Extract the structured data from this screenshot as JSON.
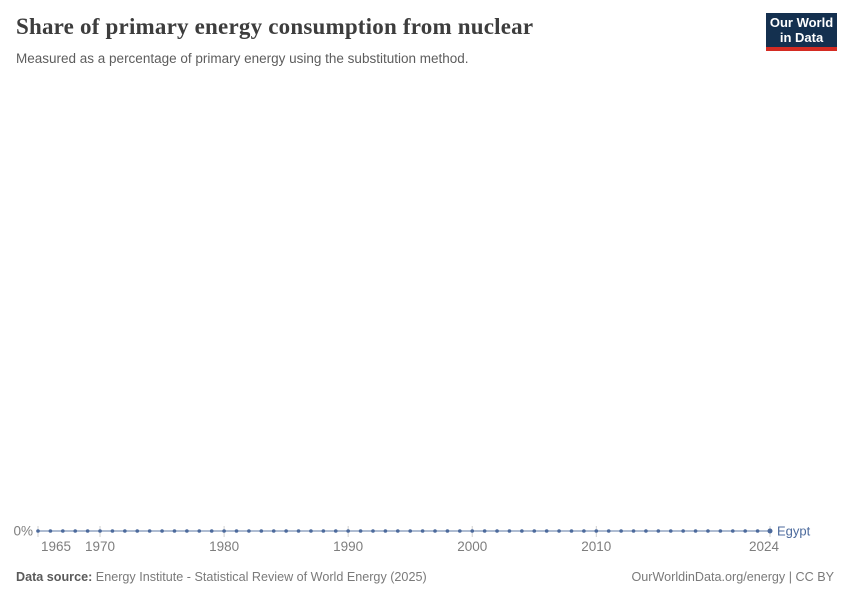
{
  "header": {
    "title": "Share of primary energy consumption from nuclear",
    "subtitle": "Measured as a percentage of primary energy using the substitution method.",
    "logo": {
      "line1": "Our World",
      "line2": "in Data",
      "bg_color": "#14304f",
      "accent_color": "#d42b22"
    }
  },
  "chart_data": {
    "type": "line",
    "title": "Share of primary energy consumption from nuclear",
    "subtitle": "Measured as a percentage of primary energy using the substitution method.",
    "xlabel": "",
    "ylabel": "",
    "grid": false,
    "legend_position": "end-of-line-label",
    "x": [
      1965,
      1966,
      1967,
      1968,
      1969,
      1970,
      1971,
      1972,
      1973,
      1974,
      1975,
      1976,
      1977,
      1978,
      1979,
      1980,
      1981,
      1982,
      1983,
      1984,
      1985,
      1986,
      1987,
      1988,
      1989,
      1990,
      1991,
      1992,
      1993,
      1994,
      1995,
      1996,
      1997,
      1998,
      1999,
      2000,
      2001,
      2002,
      2003,
      2004,
      2005,
      2006,
      2007,
      2008,
      2009,
      2010,
      2011,
      2012,
      2013,
      2014,
      2015,
      2016,
      2017,
      2018,
      2019,
      2020,
      2021,
      2022,
      2023,
      2024
    ],
    "series": [
      {
        "name": "Egypt",
        "color": "#4c6a9c",
        "values": [
          0,
          0,
          0,
          0,
          0,
          0,
          0,
          0,
          0,
          0,
          0,
          0,
          0,
          0,
          0,
          0,
          0,
          0,
          0,
          0,
          0,
          0,
          0,
          0,
          0,
          0,
          0,
          0,
          0,
          0,
          0,
          0,
          0,
          0,
          0,
          0,
          0,
          0,
          0,
          0,
          0,
          0,
          0,
          0,
          0,
          0,
          0,
          0,
          0,
          0,
          0,
          0,
          0,
          0,
          0,
          0,
          0,
          0,
          0,
          0
        ]
      }
    ],
    "x_ticks": [
      1965,
      1970,
      1980,
      1990,
      2000,
      2010,
      2024
    ],
    "y_ticks": [
      {
        "value": 0,
        "label": "0%"
      }
    ],
    "axis_label_color": "#7e7e7e",
    "tick_color": "#cfcfcf"
  },
  "footer": {
    "source_label": "Data source:",
    "source_text": "Energy Institute - Statistical Review of World Energy (2025)",
    "credit": "OurWorldinData.org/energy | CC BY"
  }
}
